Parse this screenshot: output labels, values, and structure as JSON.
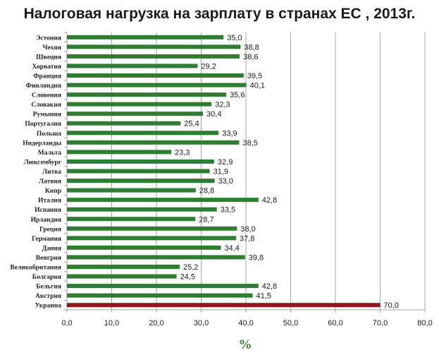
{
  "chart_data": {
    "type": "bar",
    "orientation": "horizontal",
    "title": "Налоговая нагрузка на зарплату в странах ЕС , 2013г.",
    "xlabel": "%",
    "ylabel": "",
    "xlim": [
      0,
      80
    ],
    "xticks": [
      "0,0",
      "10,0",
      "20,0",
      "30,0",
      "40,0",
      "50,0",
      "60,0",
      "70,0",
      "80,0"
    ],
    "grid": "vertical",
    "legend": "none",
    "colors": {
      "bar": "#2e7d32",
      "highlight": "#8b1a1a",
      "grid": "#a6a6a6"
    },
    "categories": [
      "Эстония",
      "Чехия",
      "Швеция",
      "Хорватия",
      "Франция",
      "Финляндия",
      "Словения",
      "Словакия",
      "Румыния",
      "Португалия",
      "Польша",
      "Нидерланды",
      "Мальта",
      "Люксембург",
      "Литва",
      "Латвия",
      "Кипр",
      "Италия",
      "Испания",
      "Ирландия",
      "Греция",
      "Германия",
      "Дания",
      "Венгрия",
      "Великобритания",
      "Болгария",
      "Бельгия",
      "Австрия",
      "Украина"
    ],
    "values": [
      35.0,
      38.8,
      38.6,
      29.2,
      39.5,
      40.1,
      35.6,
      32.3,
      30.4,
      25.4,
      33.9,
      38.5,
      23.3,
      32.9,
      31.9,
      33.0,
      28.8,
      42.8,
      33.5,
      28.7,
      38.0,
      37.8,
      34.4,
      39.8,
      25.2,
      24.5,
      42.8,
      41.5,
      70.0
    ],
    "value_labels": [
      "35,0",
      "38,8",
      "38,6",
      "29,2",
      "39,5",
      "40,1",
      "35,6",
      "32,3",
      "30,4",
      "25,4",
      "33,9",
      "38,5",
      "23,3",
      "32,9",
      "31,9",
      "33,0",
      "28,8",
      "42,8",
      "33,5",
      "28,7",
      "38,0",
      "37,8",
      "34,4",
      "39,8",
      "25,2",
      "24,5",
      "42,8",
      "41,5",
      "70,0"
    ],
    "highlight_category": "Украина"
  }
}
